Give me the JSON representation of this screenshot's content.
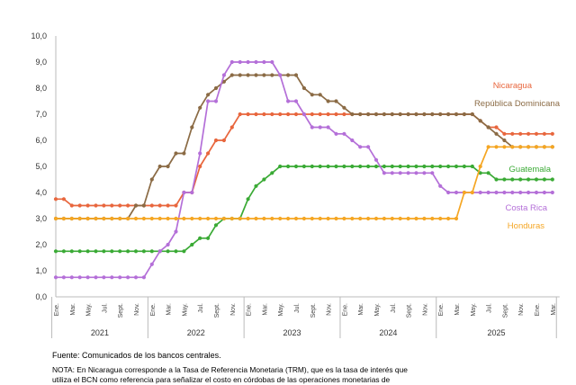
{
  "chart_data": {
    "type": "line",
    "title": "",
    "xlabel": "",
    "ylabel": "",
    "ylim": [
      0,
      10
    ],
    "yticks": [
      "0,0",
      "1,0",
      "2,0",
      "3,0",
      "4,0",
      "5,0",
      "6,0",
      "7,0",
      "8,0",
      "9,0",
      "10,0"
    ],
    "grid": false,
    "legend": "inline-right",
    "month_labels": [
      "Ene.",
      "Mar.",
      "May.",
      "Jul.",
      "Sept.",
      "Nov."
    ],
    "years": [
      "2021",
      "2022",
      "2023",
      "2024",
      "2025"
    ],
    "x_start": "2021-01",
    "series": [
      {
        "name": "Nicaragua",
        "color": "#e8663d",
        "values": [
          3.75,
          3.75,
          3.5,
          3.5,
          3.5,
          3.5,
          3.5,
          3.5,
          3.5,
          3.5,
          3.5,
          3.5,
          3.5,
          3.5,
          3.5,
          3.5,
          4.0,
          4.0,
          5.0,
          5.5,
          6.0,
          6.0,
          6.5,
          7.0,
          7.0,
          7.0,
          7.0,
          7.0,
          7.0,
          7.0,
          7.0,
          7.0,
          7.0,
          7.0,
          7.0,
          7.0,
          7.0,
          7.0,
          7.0,
          7.0,
          7.0,
          7.0,
          7.0,
          7.0,
          7.0,
          7.0,
          7.0,
          7.0,
          7.0,
          7.0,
          7.0,
          7.0,
          7.0,
          6.75,
          6.5,
          6.5,
          6.25,
          6.25,
          6.25,
          6.25,
          6.25,
          6.25,
          6.25
        ]
      },
      {
        "name": "República Dominicana",
        "color": "#8b6b45",
        "values": [
          3.0,
          3.0,
          3.0,
          3.0,
          3.0,
          3.0,
          3.0,
          3.0,
          3.0,
          3.0,
          3.5,
          3.5,
          4.5,
          5.0,
          5.0,
          5.5,
          5.5,
          6.5,
          7.25,
          7.75,
          8.0,
          8.25,
          8.5,
          8.5,
          8.5,
          8.5,
          8.5,
          8.5,
          8.5,
          8.5,
          8.5,
          8.0,
          7.75,
          7.75,
          7.5,
          7.5,
          7.25,
          7.0,
          7.0,
          7.0,
          7.0,
          7.0,
          7.0,
          7.0,
          7.0,
          7.0,
          7.0,
          7.0,
          7.0,
          7.0,
          7.0,
          7.0,
          7.0,
          6.75,
          6.5,
          6.25,
          6.0,
          5.75,
          5.75,
          5.75,
          5.75,
          5.75,
          5.75
        ]
      },
      {
        "name": "Guatemala",
        "color": "#3aaa35",
        "values": [
          1.75,
          1.75,
          1.75,
          1.75,
          1.75,
          1.75,
          1.75,
          1.75,
          1.75,
          1.75,
          1.75,
          1.75,
          1.75,
          1.75,
          1.75,
          1.75,
          1.75,
          2.0,
          2.25,
          2.25,
          2.75,
          3.0,
          3.0,
          3.0,
          3.75,
          4.25,
          4.5,
          4.75,
          5.0,
          5.0,
          5.0,
          5.0,
          5.0,
          5.0,
          5.0,
          5.0,
          5.0,
          5.0,
          5.0,
          5.0,
          5.0,
          5.0,
          5.0,
          5.0,
          5.0,
          5.0,
          5.0,
          5.0,
          5.0,
          5.0,
          5.0,
          5.0,
          5.0,
          4.75,
          4.75,
          4.5,
          4.5,
          4.5,
          4.5,
          4.5,
          4.5,
          4.5,
          4.5
        ]
      },
      {
        "name": "Costa Rica",
        "color": "#b46fd8",
        "values": [
          0.75,
          0.75,
          0.75,
          0.75,
          0.75,
          0.75,
          0.75,
          0.75,
          0.75,
          0.75,
          0.75,
          0.75,
          1.25,
          1.75,
          2.0,
          2.5,
          4.0,
          4.0,
          5.5,
          7.5,
          7.5,
          8.5,
          9.0,
          9.0,
          9.0,
          9.0,
          9.0,
          9.0,
          8.5,
          7.5,
          7.5,
          7.0,
          6.5,
          6.5,
          6.5,
          6.25,
          6.25,
          6.0,
          5.75,
          5.75,
          5.25,
          4.75,
          4.75,
          4.75,
          4.75,
          4.75,
          4.75,
          4.75,
          4.25,
          4.0,
          4.0,
          4.0,
          4.0,
          4.0,
          4.0,
          4.0,
          4.0,
          4.0,
          4.0,
          4.0,
          4.0,
          4.0,
          4.0
        ]
      },
      {
        "name": "Honduras",
        "color": "#f5a623",
        "values": [
          3.0,
          3.0,
          3.0,
          3.0,
          3.0,
          3.0,
          3.0,
          3.0,
          3.0,
          3.0,
          3.0,
          3.0,
          3.0,
          3.0,
          3.0,
          3.0,
          3.0,
          3.0,
          3.0,
          3.0,
          3.0,
          3.0,
          3.0,
          3.0,
          3.0,
          3.0,
          3.0,
          3.0,
          3.0,
          3.0,
          3.0,
          3.0,
          3.0,
          3.0,
          3.0,
          3.0,
          3.0,
          3.0,
          3.0,
          3.0,
          3.0,
          3.0,
          3.0,
          3.0,
          3.0,
          3.0,
          3.0,
          3.0,
          3.0,
          3.0,
          3.0,
          4.0,
          4.0,
          5.0,
          5.75,
          5.75,
          5.75,
          5.75,
          5.75,
          5.75,
          5.75,
          5.75,
          5.75
        ]
      }
    ]
  },
  "footer": {
    "source": "Fuente: Comunicados de los bancos centrales.",
    "nota": "NOTA: En Nicaragua corresponde a la Tasa de Referencia Monetaria (TRM), que es la tasa de interés que",
    "nota2": "utiliza el BCN como referencia para señalizar el costo en córdobas de las operaciones monetarias de"
  }
}
